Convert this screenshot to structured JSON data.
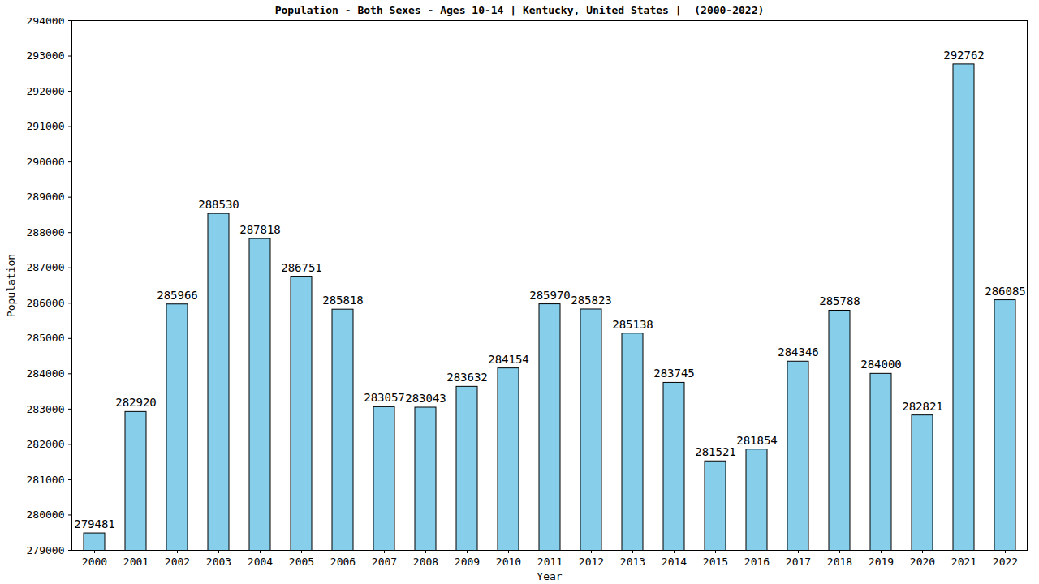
{
  "chart_data": {
    "type": "bar",
    "title": "Population - Both Sexes - Ages 10-14 | Kentucky, United States |  (2000-2022)",
    "x_label": "Year",
    "y_label": "Population",
    "categories": [
      "2000",
      "2001",
      "2002",
      "2003",
      "2004",
      "2005",
      "2006",
      "2007",
      "2008",
      "2009",
      "2010",
      "2011",
      "2012",
      "2013",
      "2014",
      "2015",
      "2016",
      "2017",
      "2018",
      "2019",
      "2020",
      "2021",
      "2022"
    ],
    "values": [
      279481,
      282920,
      285966,
      288530,
      287818,
      286751,
      285818,
      283057,
      283043,
      283632,
      284154,
      285970,
      285823,
      285138,
      283745,
      281521,
      281854,
      284346,
      285788,
      284000,
      282821,
      292762,
      286085
    ],
    "color": "#87CEEB",
    "ylim": [
      279000,
      294000
    ],
    "yticks": [
      279000,
      280000,
      281000,
      282000,
      283000,
      284000,
      285000,
      286000,
      287000,
      288000,
      289000,
      290000,
      291000,
      292000,
      293000,
      294000
    ],
    "grid": false,
    "data_labels": true
  }
}
